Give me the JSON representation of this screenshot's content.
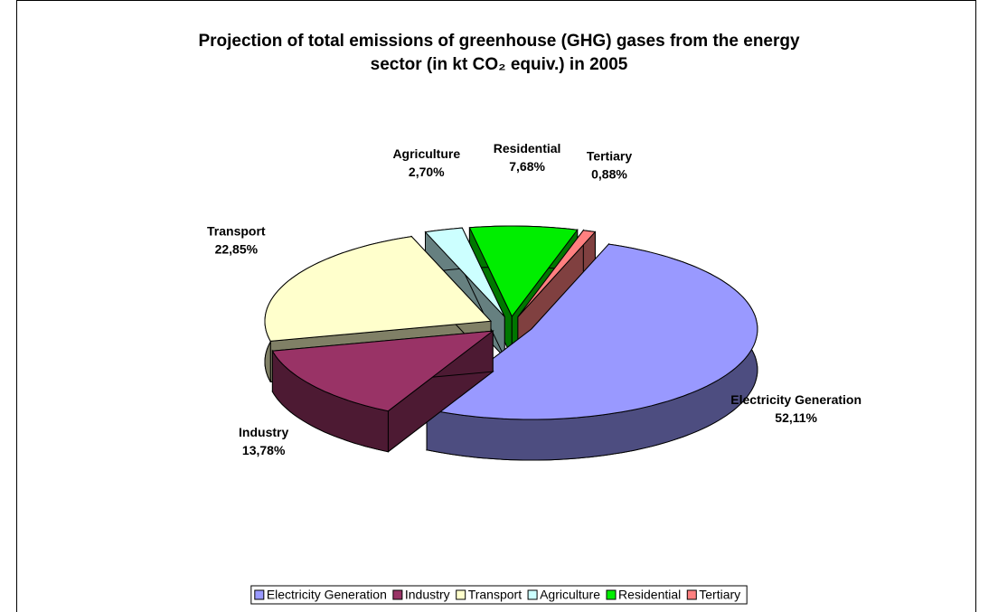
{
  "chart_data": {
    "type": "pie",
    "title": [
      "Projection of total emissions of greenhouse (GHG) gases from the energy",
      "sector (in kt CO₂ equiv.) in 2005"
    ],
    "categories": [
      "Electricity Generation",
      "Industry",
      "Transport",
      "Agriculture",
      "Residential",
      "Tertiary"
    ],
    "values": [
      52.11,
      13.78,
      22.85,
      2.7,
      7.68,
      0.88
    ],
    "value_labels": [
      "52,11%",
      "13,78%",
      "22,85%",
      "2,70%",
      "7,68%",
      "0,88%"
    ],
    "colors": [
      "#9999ff",
      "#993366",
      "#ffffcc",
      "#ccffff",
      "#00ee00",
      "#ff8080"
    ],
    "legend": "bottom"
  }
}
